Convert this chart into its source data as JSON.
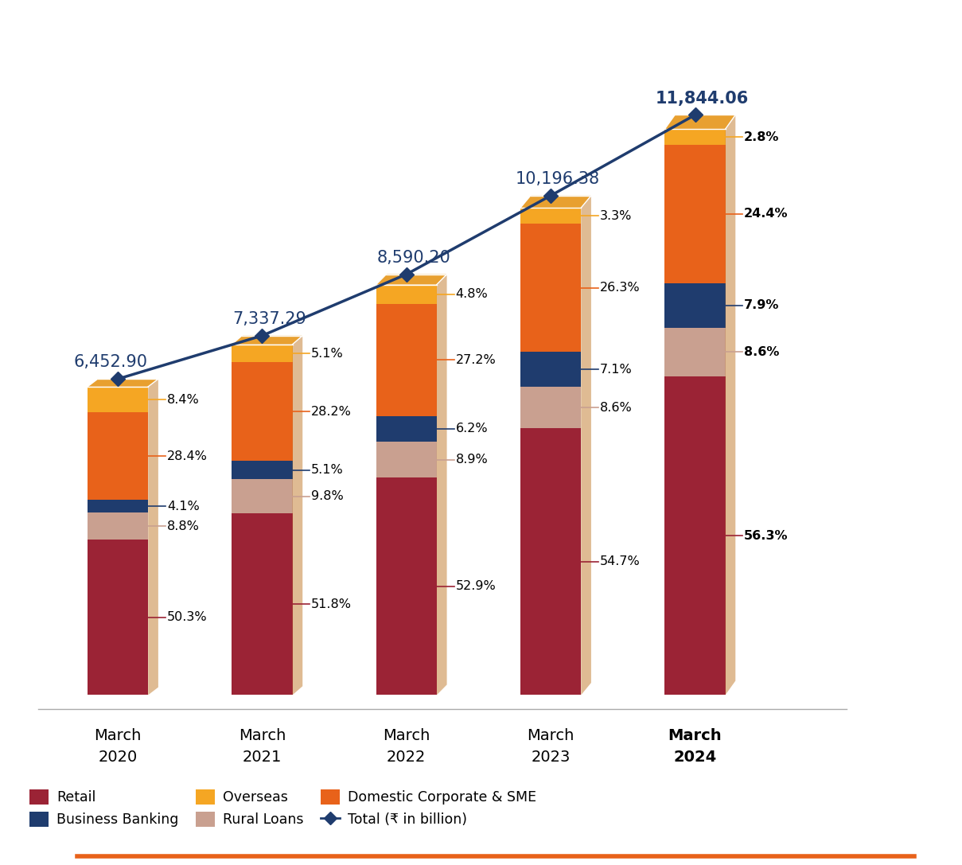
{
  "years": [
    "March\n2020",
    "March\n2021",
    "March\n2022",
    "March\n2023",
    "March\n2024"
  ],
  "totals": [
    6452.9,
    7337.29,
    8590.2,
    10196.38,
    11844.06
  ],
  "segments": {
    "Retail": [
      50.3,
      51.8,
      52.9,
      54.7,
      56.3
    ],
    "Rural Loans": [
      8.8,
      9.8,
      8.9,
      8.6,
      8.6
    ],
    "Business Banking": [
      4.1,
      5.1,
      6.2,
      7.1,
      7.9
    ],
    "Domestic Corporate & SME": [
      28.4,
      28.2,
      27.2,
      26.3,
      24.4
    ],
    "Overseas": [
      8.4,
      5.1,
      4.8,
      3.3,
      2.8
    ]
  },
  "colors": {
    "Retail": "#9B2335",
    "Rural Loans": "#C9A090",
    "Business Banking": "#1F3C6E",
    "Domestic Corporate & SME": "#E8621A",
    "Overseas": "#F5A623"
  },
  "total_line_color": "#1F3C6E",
  "annotation_line_colors": {
    "Retail": "#9B2335",
    "Rural Loans": "#C9A090",
    "Business Banking": "#1F3C6E",
    "Domestic Corporate & SME": "#E8621A",
    "Overseas": "#F5A623"
  },
  "bar_width": 0.42,
  "background_color": "#FFFFFF",
  "total_label_color": "#1F3C6E",
  "x_positions": [
    0,
    1,
    2,
    3,
    4
  ]
}
